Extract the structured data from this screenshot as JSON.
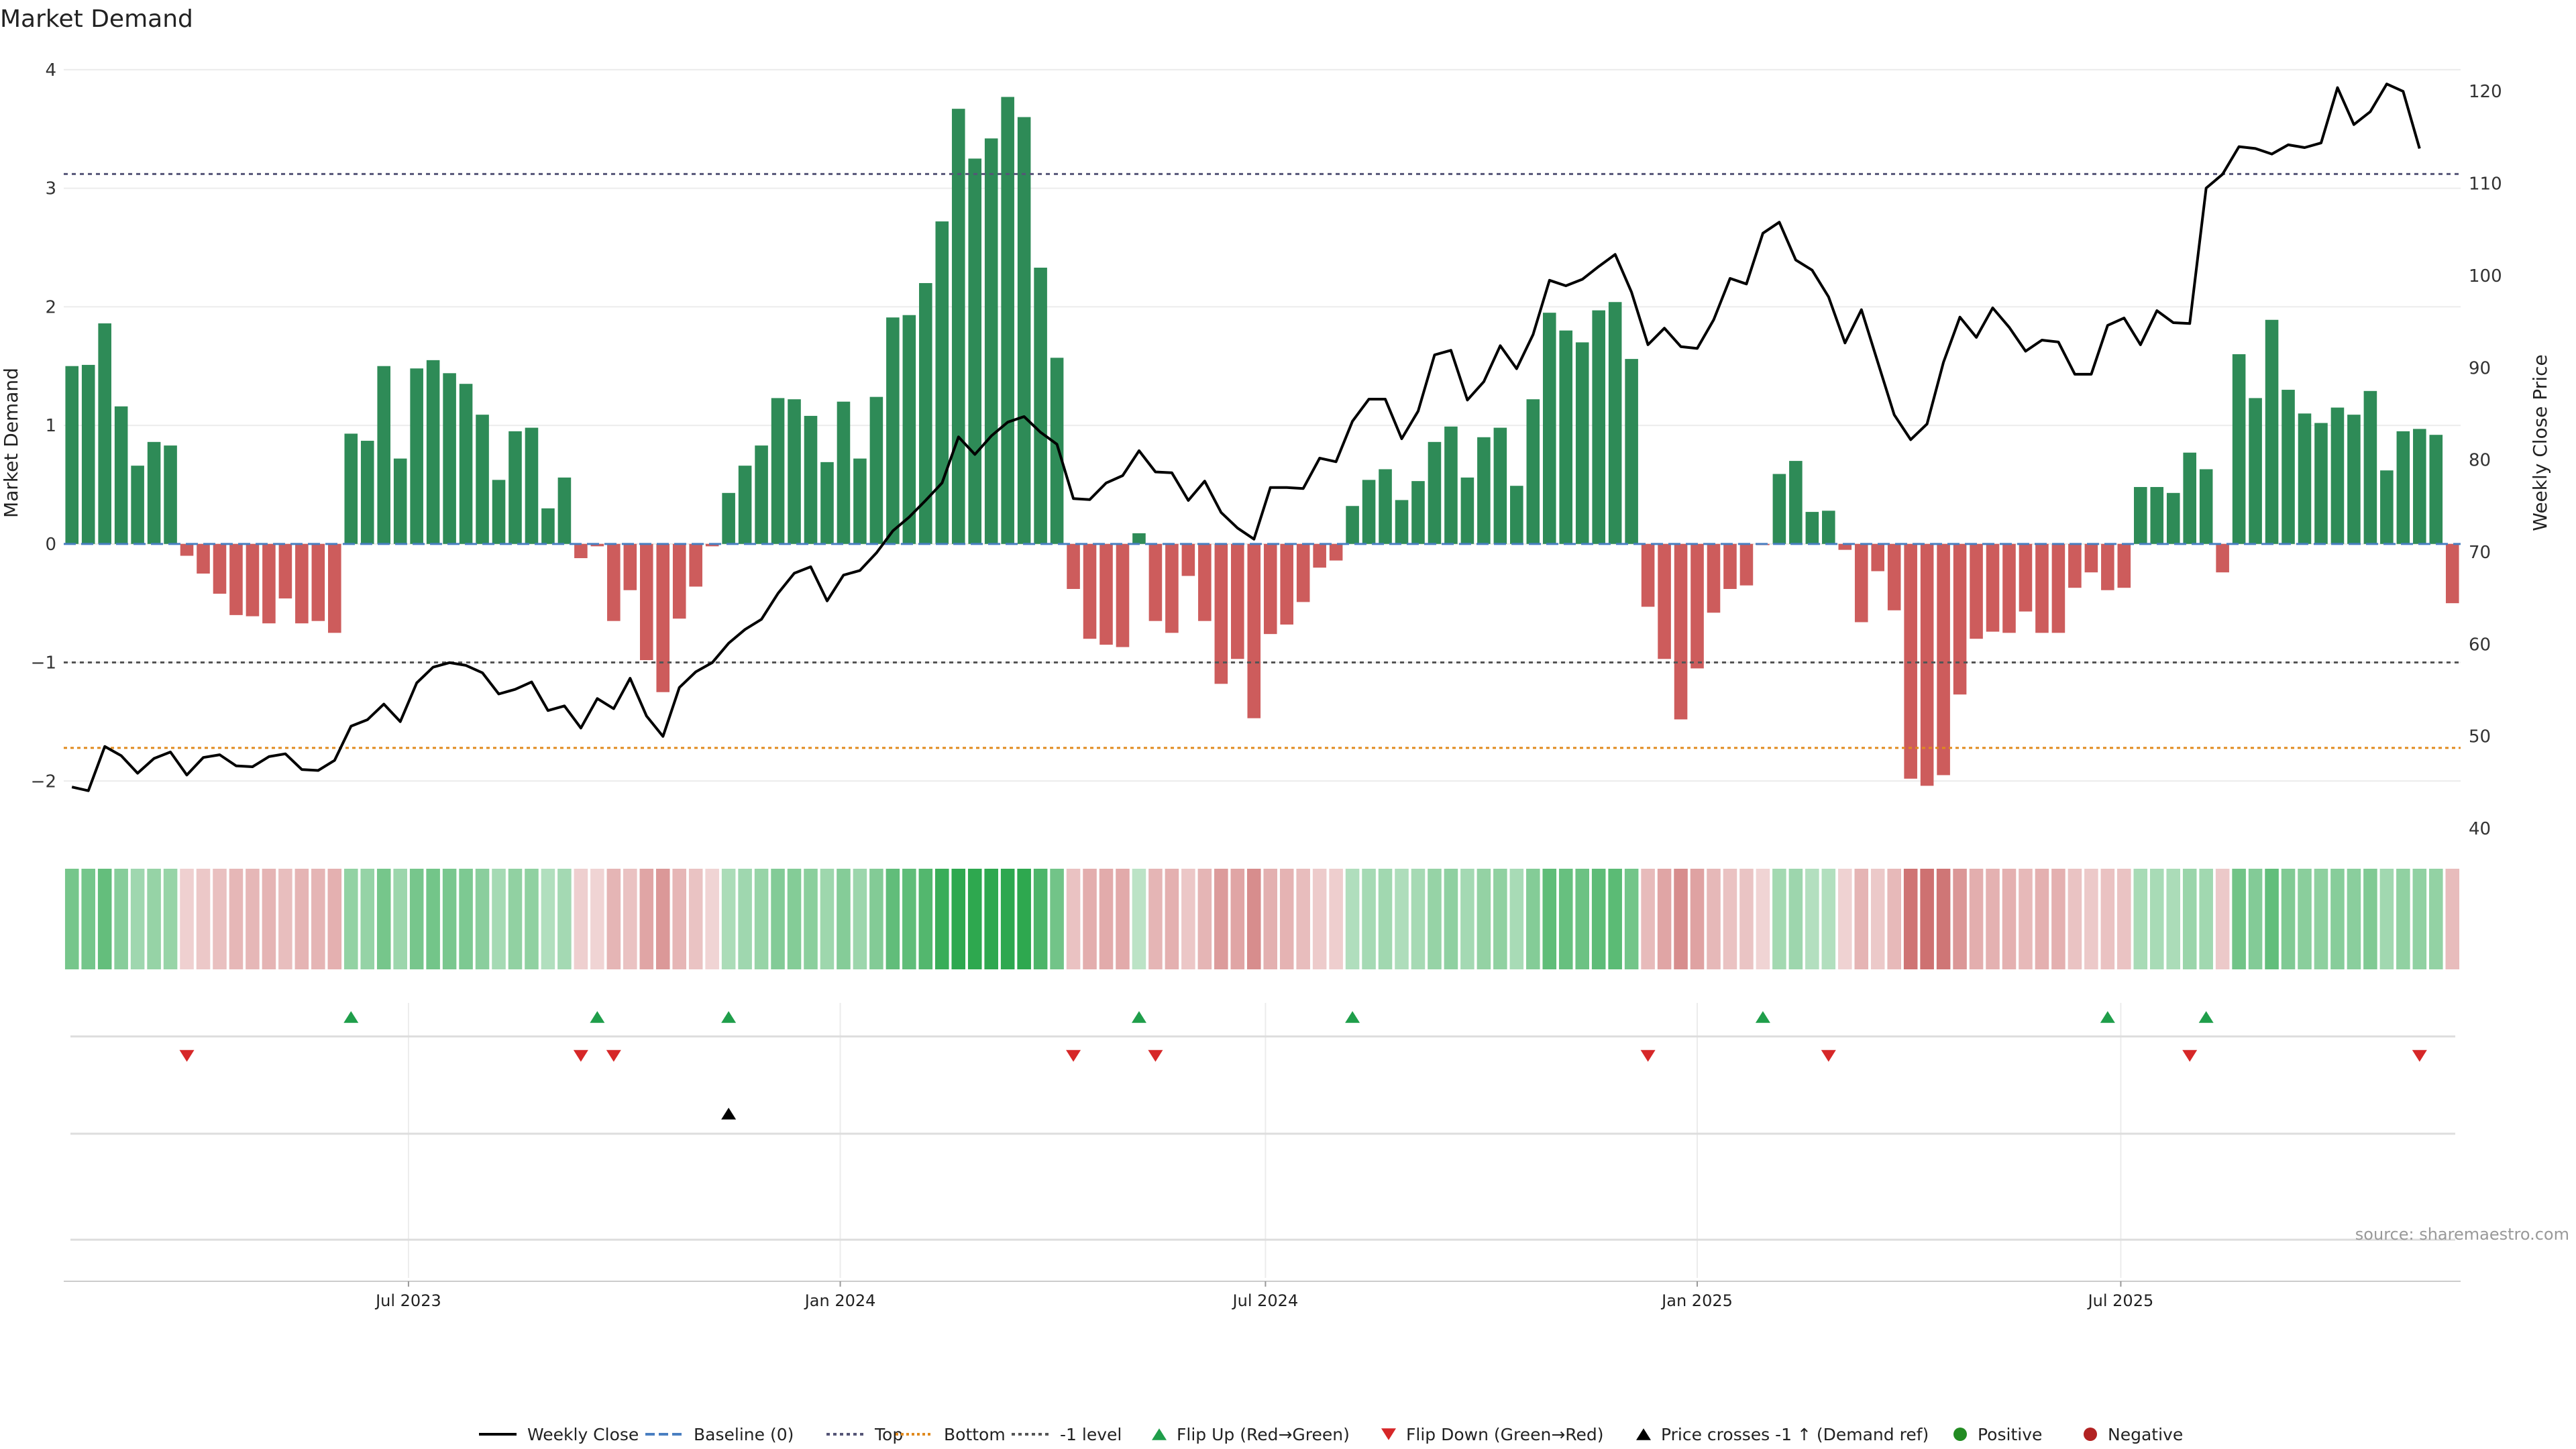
{
  "chart_data": {
    "type": "bar",
    "title": "Market Demand",
    "ylabel_left": "Market Demand",
    "ylabel_right": "Weekly Close Price",
    "ylim_left": [
      -2.4,
      4.05
    ],
    "ylim_right": [
      40,
      123
    ],
    "left_ticks": [
      {
        "v": 4,
        "label": "4"
      },
      {
        "v": 3,
        "label": "3"
      },
      {
        "v": 2,
        "label": "2"
      },
      {
        "v": 1,
        "label": "1"
      },
      {
        "v": 0,
        "label": "0"
      },
      {
        "v": -1,
        "label": "−1"
      },
      {
        "v": -2,
        "label": "−2"
      }
    ],
    "right_ticks": [
      {
        "v": 120,
        "label": "120"
      },
      {
        "v": 110,
        "label": "110"
      },
      {
        "v": 100,
        "label": "100"
      },
      {
        "v": 90,
        "label": "90"
      },
      {
        "v": 80,
        "label": "80"
      },
      {
        "v": 70,
        "label": "70"
      },
      {
        "v": 60,
        "label": "60"
      },
      {
        "v": 50,
        "label": "50"
      },
      {
        "v": 40,
        "label": "40"
      }
    ],
    "x_ticks": [
      {
        "week": 20.5,
        "label": "Jul 2023"
      },
      {
        "week": 46.8,
        "label": "Jan 2024"
      },
      {
        "week": 72.7,
        "label": "Jul 2024"
      },
      {
        "week": 99.0,
        "label": "Jan 2025"
      },
      {
        "week": 124.8,
        "label": "Jul 2025"
      }
    ],
    "levels": {
      "top": 3.12,
      "bottom": -1.72,
      "minus_one": -1.0,
      "baseline": 0
    },
    "demand": [
      1.5,
      1.51,
      1.86,
      1.16,
      0.66,
      0.86,
      0.83,
      -0.1,
      -0.25,
      -0.42,
      -0.6,
      -0.61,
      -0.67,
      -0.46,
      -0.67,
      -0.65,
      -0.75,
      0.93,
      0.87,
      1.5,
      0.72,
      1.48,
      1.55,
      1.44,
      1.35,
      1.09,
      0.54,
      0.95,
      0.98,
      0.3,
      0.56,
      -0.12,
      -0.02,
      -0.65,
      -0.39,
      -0.98,
      -1.25,
      -0.63,
      -0.36,
      -0.02,
      0.43,
      0.66,
      0.83,
      1.23,
      1.22,
      1.08,
      0.69,
      1.2,
      0.72,
      1.24,
      1.91,
      1.93,
      2.2,
      2.72,
      3.67,
      3.25,
      3.42,
      3.77,
      3.6,
      2.33,
      1.57,
      -0.38,
      -0.8,
      -0.85,
      -0.87,
      0.09,
      -0.65,
      -0.75,
      -0.27,
      -0.65,
      -1.18,
      -0.97,
      -1.47,
      -0.76,
      -0.68,
      -0.49,
      -0.2,
      -0.14,
      0.32,
      0.54,
      0.63,
      0.37,
      0.53,
      0.86,
      0.99,
      0.56,
      0.9,
      0.98,
      0.49,
      1.22,
      1.95,
      1.8,
      1.7,
      1.97,
      2.04,
      1.56,
      -0.53,
      -0.97,
      -1.48,
      -1.05,
      -0.58,
      -0.38,
      -0.35,
      -0.01,
      0.59,
      0.7,
      0.27,
      0.28,
      -0.05,
      -0.66,
      -0.23,
      -0.56,
      -1.98,
      -2.04,
      -1.95,
      -1.27,
      -0.8,
      -0.74,
      -0.75,
      -0.57,
      -0.75,
      -0.75,
      -0.37,
      -0.24,
      -0.39,
      -0.37,
      0.48,
      0.48,
      0.43,
      0.77,
      0.63,
      -0.24,
      1.6,
      1.23,
      1.89,
      1.3,
      1.1,
      1.02,
      1.15,
      1.09,
      1.29,
      0.62,
      0.95,
      0.97,
      0.92,
      -0.5
    ],
    "price_x": [
      0,
      1,
      2,
      3,
      4,
      5,
      6,
      7,
      8,
      9,
      10,
      11,
      12,
      13,
      14,
      15,
      16,
      17,
      18,
      19,
      20,
      21,
      22,
      23,
      24,
      25,
      26,
      27,
      28,
      29,
      30,
      31,
      32,
      33,
      34,
      35,
      36,
      37,
      38,
      39,
      40,
      41,
      42,
      43,
      44,
      45,
      46,
      47,
      48,
      49,
      50,
      51,
      52,
      53,
      54,
      55,
      56,
      57,
      58,
      59,
      60,
      61,
      62,
      63,
      64,
      65,
      66,
      67,
      68,
      69,
      70,
      71,
      72,
      73,
      74,
      75,
      76,
      77,
      78,
      79,
      80,
      81,
      82,
      83,
      84,
      85,
      86,
      87,
      88,
      89,
      90,
      91,
      92,
      93,
      94,
      95,
      96,
      97,
      98,
      99,
      100,
      101,
      102,
      103,
      104,
      105,
      106,
      107,
      108,
      109,
      110,
      111,
      112,
      113,
      114,
      115,
      116,
      117,
      118,
      119,
      120,
      121,
      122,
      123,
      124,
      125,
      126,
      127,
      128,
      129,
      130,
      131,
      132,
      133,
      134,
      135,
      136,
      137,
      138,
      139,
      140,
      141,
      142,
      143
    ],
    "price": [
      44.5,
      44.1,
      48.9,
      47.9,
      46.0,
      47.6,
      48.3,
      45.8,
      47.7,
      48.0,
      46.8,
      46.7,
      47.8,
      48.1,
      46.4,
      46.3,
      47.4,
      51.1,
      51.8,
      53.5,
      51.6,
      55.8,
      57.5,
      58.0,
      57.7,
      56.9,
      54.6,
      55.1,
      55.9,
      52.8,
      53.3,
      50.9,
      54.1,
      53.0,
      56.3,
      52.2,
      50.0,
      55.3,
      57.0,
      58.0,
      60.1,
      61.6,
      62.7,
      65.5,
      67.7,
      68.4,
      64.7,
      67.5,
      68.0,
      69.9,
      72.3,
      73.8,
      75.6,
      77.5,
      82.5,
      80.6,
      82.6,
      84.1,
      84.7,
      83.0,
      81.7,
      75.8,
      75.7,
      77.5,
      78.3,
      81.0,
      78.7,
      78.6,
      75.6,
      77.7,
      74.3,
      72.6,
      71.4,
      77.0,
      77.0,
      76.9,
      80.2,
      79.8,
      84.2,
      86.6,
      86.6,
      82.3,
      85.3,
      91.4,
      91.9,
      86.5,
      88.5,
      92.4,
      89.9,
      93.6,
      99.5,
      98.9,
      99.6,
      101.0,
      102.3,
      98.2,
      92.5,
      94.3,
      92.3,
      92.1,
      95.2,
      99.7,
      99.1,
      104.6,
      105.8,
      101.7,
      100.6,
      97.7,
      92.7,
      96.3,
      90.6,
      84.9,
      82.2,
      83.9,
      90.6,
      95.5,
      93.3,
      96.5,
      94.4,
      91.8,
      93.0,
      92.8,
      89.3,
      89.3,
      94.6,
      95.4,
      92.5,
      96.2,
      94.9,
      94.8,
      109.5,
      111.0,
      114.0,
      113.8,
      113.2,
      114.2,
      113.9,
      114.4,
      120.4,
      116.4,
      117.8,
      120.8,
      120.0,
      113.8
    ],
    "flip_up_weeks": [
      17,
      32,
      40,
      65,
      78,
      103,
      124,
      130
    ],
    "flip_down_weeks": [
      7,
      31,
      33,
      61,
      66,
      96,
      107,
      129,
      143
    ],
    "price_cross_weeks": [
      40
    ],
    "source": "source: sharemaestro.com",
    "legend": [
      "Weekly Close",
      "Baseline (0)",
      "Top",
      "Bottom",
      "-1 level",
      "Flip Up (Red→Green)",
      "Flip Down (Green→Red)",
      "Price crosses -1 ↑ (Demand ref)",
      "Positive",
      "Negative"
    ],
    "colors": {
      "positive": "#2e8b57",
      "negative": "#cd5c5c",
      "price": "#000000",
      "baseline": "#4a7fc1",
      "top": "#555577",
      "bottom": "#e08a1e",
      "minus_one": "#555555",
      "flip_up": "#1f9e4a",
      "flip_down": "#d62728",
      "cross": "#000000",
      "legend_positive": "#228b22",
      "legend_negative": "#b22222"
    }
  }
}
